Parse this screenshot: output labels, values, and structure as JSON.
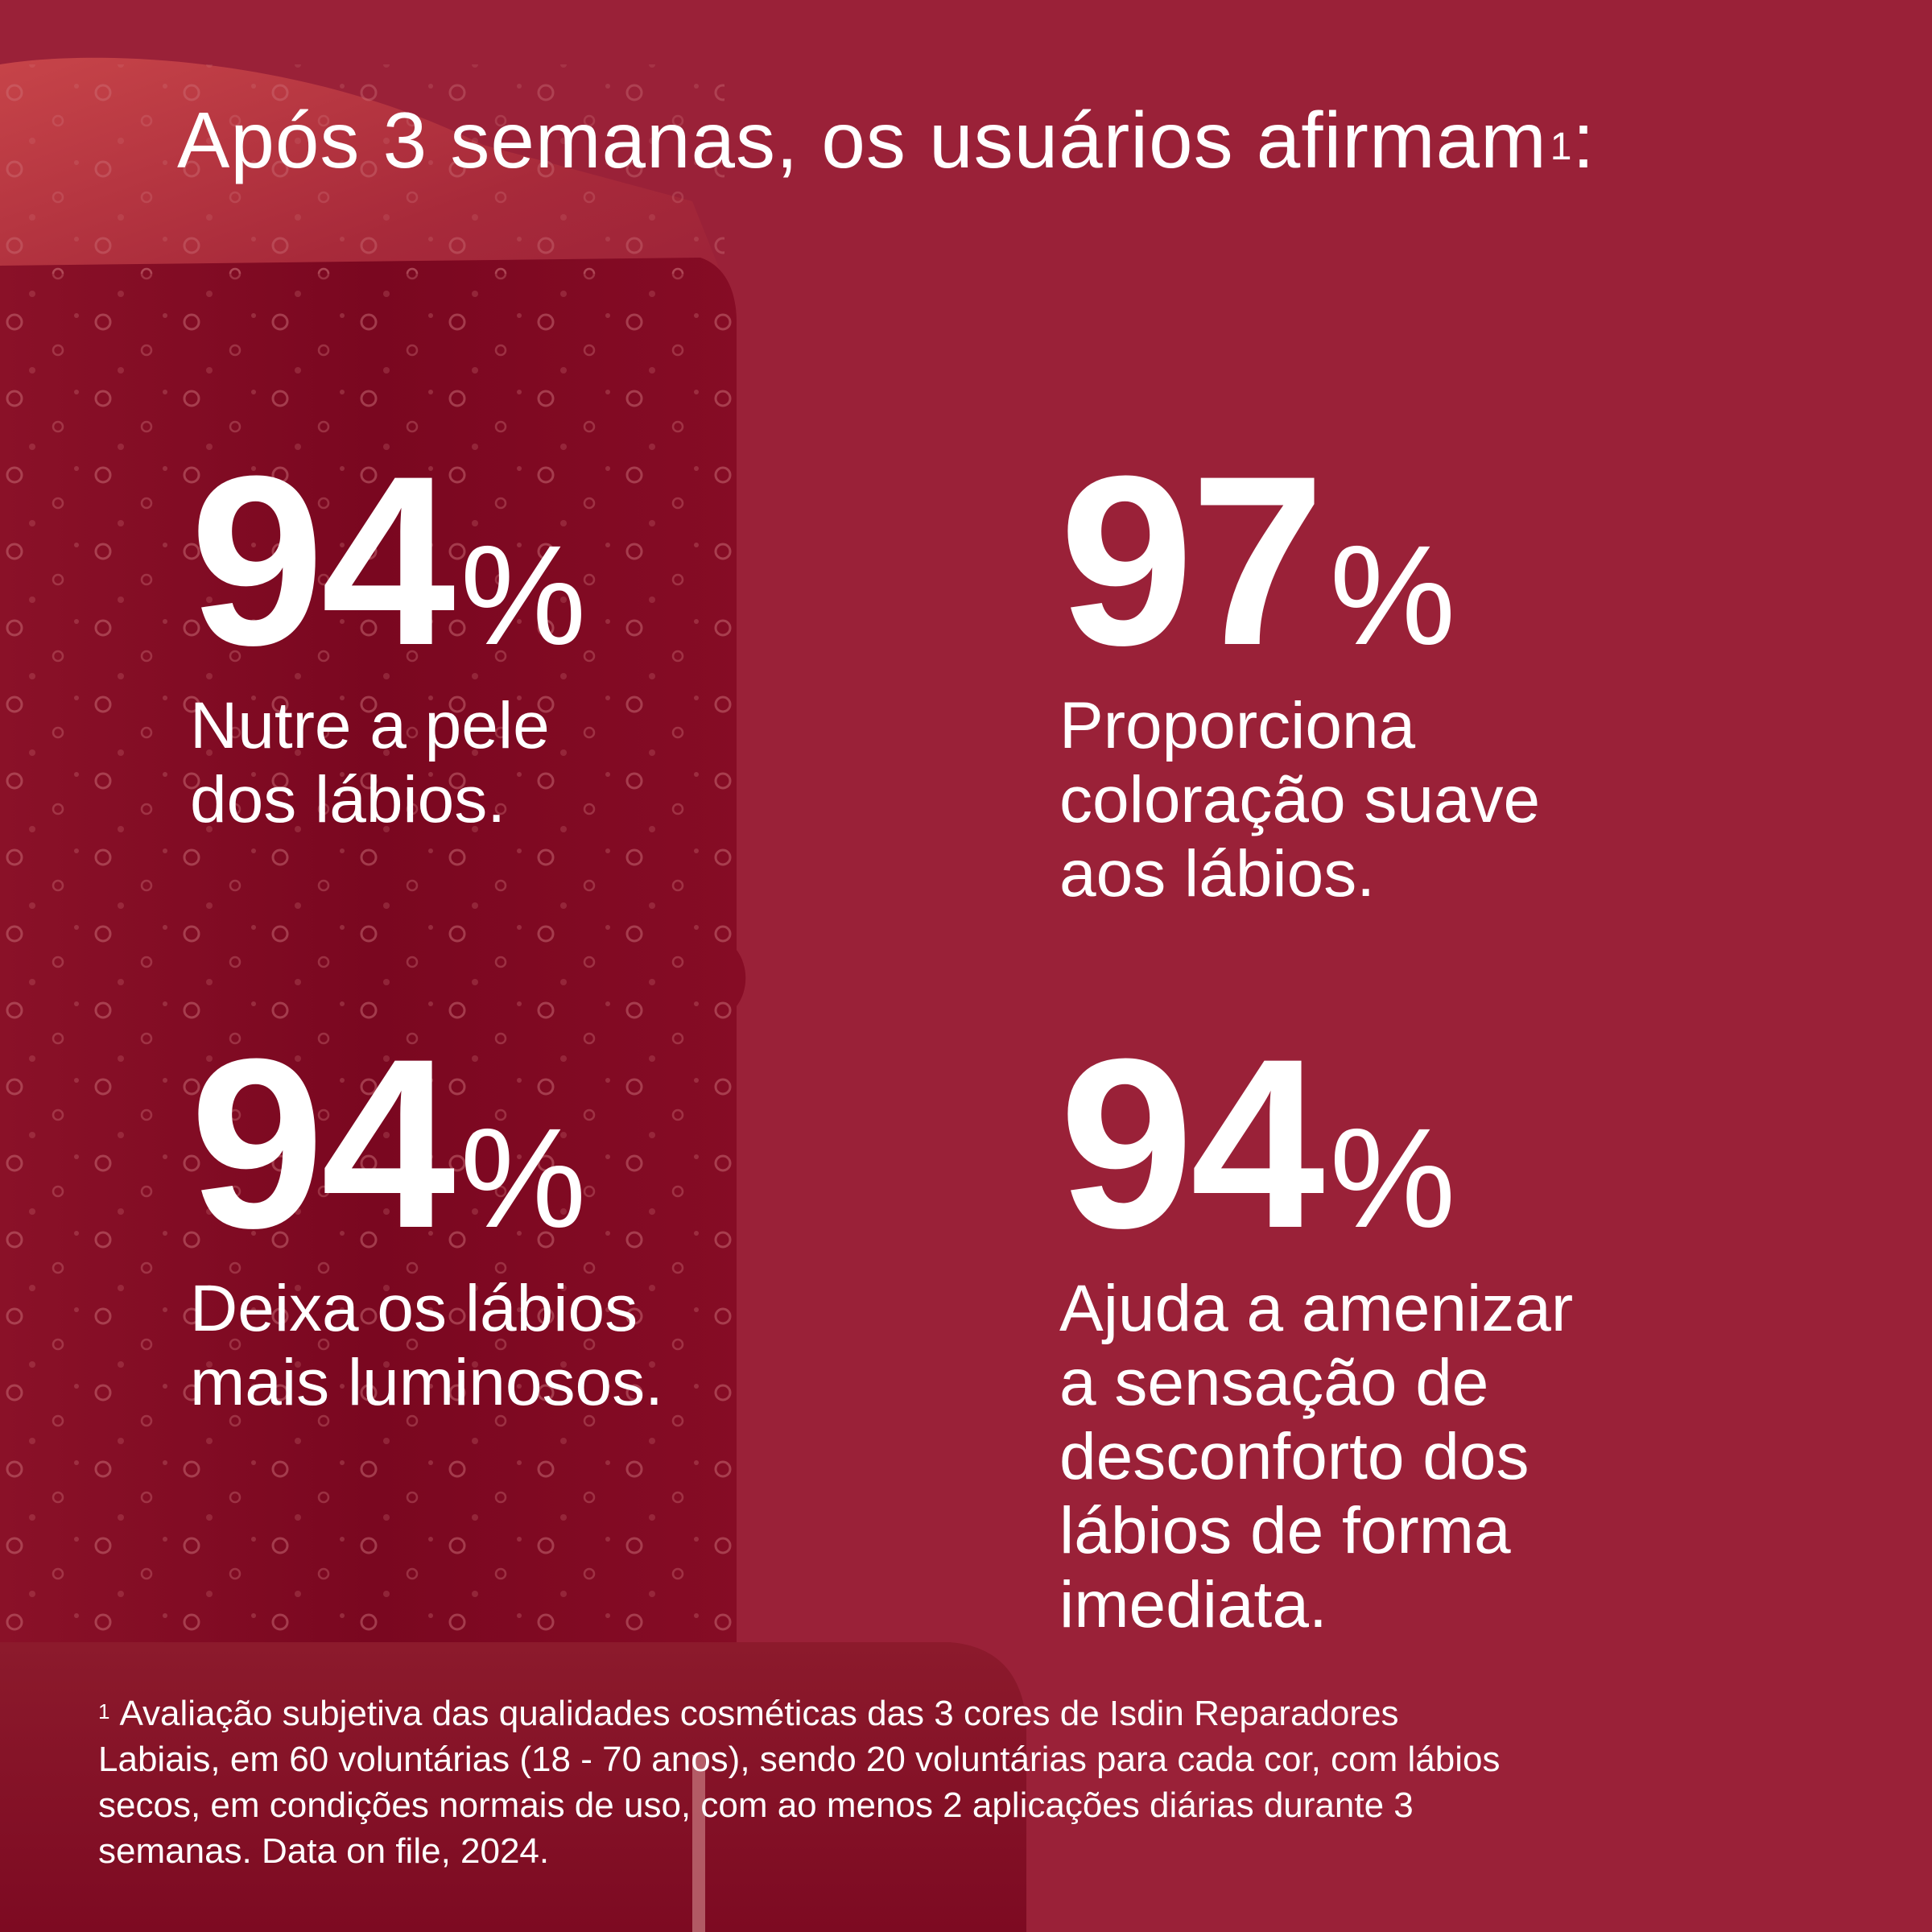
{
  "colors": {
    "background": "#9a2138",
    "product_dark": "#7a0720",
    "product_light": "#c24045",
    "text": "#ffffff"
  },
  "heading": {
    "text": "Após 3 semanas, os usuários afirmam",
    "sup": "1",
    "suffix": ":"
  },
  "stats": [
    {
      "value": "94",
      "unit": "%",
      "lines": [
        "Nutre a pele",
        "dos lábios."
      ]
    },
    {
      "value": "97",
      "unit": "%",
      "lines": [
        "Proporciona",
        "coloração suave",
        "aos lábios."
      ]
    },
    {
      "value": "94",
      "unit": "%",
      "lines": [
        "Deixa os lábios",
        "mais luminosos."
      ]
    },
    {
      "value": "94",
      "unit": "%",
      "lines": [
        "Ajuda a amenizar",
        "a sensação de",
        "desconforto dos",
        "lábios de forma",
        "imediata."
      ]
    }
  ],
  "footnote": {
    "marker": "1",
    "lines": [
      "Avaliação subjetiva das qualidades cosméticas das 3 cores de Isdin Reparadores",
      "Labiais, em 60 voluntárias (18 - 70 anos), sendo 20 voluntárias para cada cor, com lábios",
      "secos, em condições normais de uso, com ao menos 2 aplicações diárias durante 3",
      "semanas. Data on file, 2024."
    ]
  }
}
